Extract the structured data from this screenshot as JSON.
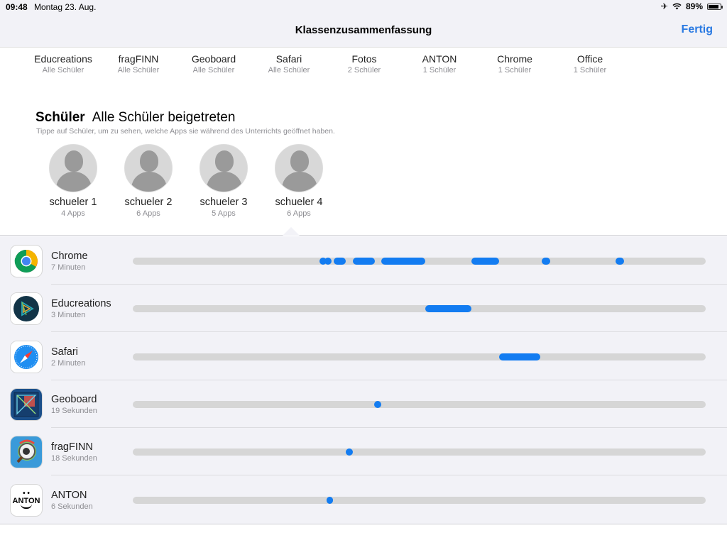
{
  "status": {
    "time": "09:48",
    "date": "Montag 23. Aug.",
    "battery": "89%",
    "battery_level": 0.89
  },
  "nav": {
    "title": "Klassenzusammenfassung",
    "done": "Fertig"
  },
  "apps_header": [
    {
      "name": "Educreations",
      "sub": "Alle Schüler"
    },
    {
      "name": "fragFINN",
      "sub": "Alle Schüler"
    },
    {
      "name": "Geoboard",
      "sub": "Alle Schüler"
    },
    {
      "name": "Safari",
      "sub": "Alle Schüler"
    },
    {
      "name": "Fotos",
      "sub": "2 Schüler"
    },
    {
      "name": "ANTON",
      "sub": "1 Schüler"
    },
    {
      "name": "Chrome",
      "sub": "1 Schüler"
    },
    {
      "name": "Office",
      "sub": "1 Schüler"
    }
  ],
  "students_section": {
    "title": "Schüler",
    "status": "Alle Schüler beigetreten",
    "hint": "Tippe auf Schüler, um zu sehen, welche Apps sie während des Unterrichts geöffnet haben."
  },
  "students": [
    {
      "name": "schueler 1",
      "apps": "4 Apps"
    },
    {
      "name": "schueler 2",
      "apps": "6 Apps"
    },
    {
      "name": "schueler 3",
      "apps": "5 Apps"
    },
    {
      "name": "schueler 4",
      "apps": "6 Apps"
    }
  ],
  "selected_student": "schueler 4",
  "accent_color": "#137cf1",
  "usage": [
    {
      "app": "Chrome",
      "duration": "7 Minuten",
      "icon": "chrome-icon",
      "segments": [
        [
          0.326,
          0.336
        ],
        [
          0.335,
          0.345
        ],
        [
          0.351,
          0.372
        ],
        [
          0.384,
          0.422
        ],
        [
          0.434,
          0.51
        ],
        [
          0.591,
          0.64
        ],
        [
          0.714,
          0.729
        ],
        [
          0.843,
          0.858
        ]
      ]
    },
    {
      "app": "Educreations",
      "duration": "3 Minuten",
      "icon": "educreations-icon",
      "segments": [
        [
          0.51,
          0.591
        ]
      ]
    },
    {
      "app": "Safari",
      "duration": "2 Minuten",
      "icon": "safari-icon",
      "segments": [
        [
          0.64,
          0.711
        ]
      ]
    },
    {
      "app": "Geoboard",
      "duration": "19 Sekunden",
      "icon": "geoboard-icon",
      "segments": [
        [
          0.421,
          0.434
        ]
      ]
    },
    {
      "app": "fragFINN",
      "duration": "18 Sekunden",
      "icon": "fragfinn-icon",
      "segments": [
        [
          0.372,
          0.384
        ]
      ]
    },
    {
      "app": "ANTON",
      "duration": "6 Sekunden",
      "icon": "anton-icon",
      "icon_text": "ANTON",
      "segments": [
        [
          0.338,
          0.35
        ]
      ]
    }
  ]
}
